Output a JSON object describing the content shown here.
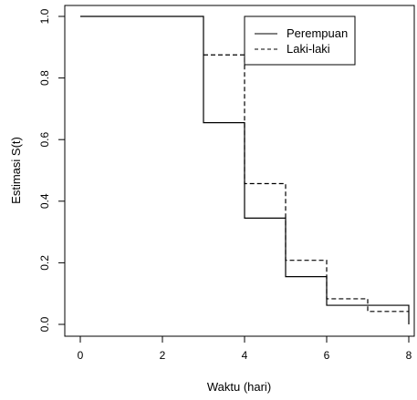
{
  "chart_data": {
    "type": "line",
    "subtype": "step",
    "xlabel": "Waktu (hari)",
    "ylabel": "Estimasi S(t)",
    "xlim": [
      0,
      8
    ],
    "ylim": [
      0,
      1
    ],
    "x_ticks": [
      "0",
      "2",
      "4",
      "6",
      "8"
    ],
    "y_ticks": [
      "0.0",
      "0.2",
      "0.4",
      "0.6",
      "0.8",
      "1.0"
    ],
    "x_tick_values": [
      0,
      2,
      4,
      6,
      8
    ],
    "y_tick_values": [
      0,
      0.2,
      0.4,
      0.6,
      0.8,
      1.0
    ],
    "grid": false,
    "legend_position": "top-right",
    "series": [
      {
        "name": "Perempuan",
        "line_style": "solid",
        "color": "#000000",
        "x": [
          0,
          3,
          4,
          5,
          6,
          8,
          8
        ],
        "y": [
          1.0,
          0.655,
          0.345,
          0.155,
          0.062,
          0.062,
          0.0
        ]
      },
      {
        "name": "Laki-laki",
        "line_style": "dashed",
        "color": "#000000",
        "x": [
          3,
          4,
          5,
          6,
          7,
          8
        ],
        "y": [
          0.875,
          0.457,
          0.208,
          0.083,
          0.042,
          0.042
        ]
      }
    ]
  }
}
